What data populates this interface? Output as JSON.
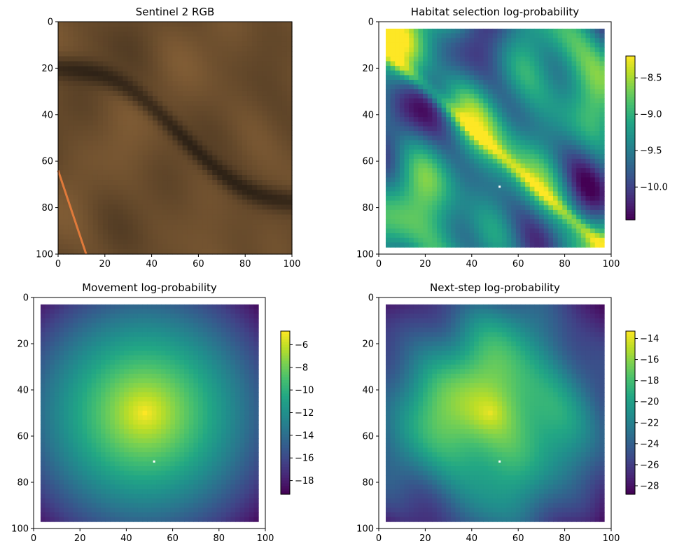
{
  "chart_data": [
    {
      "type": "image",
      "title": "Sentinel 2 RGB",
      "xticks": [
        0,
        20,
        40,
        60,
        80,
        100
      ],
      "yticks": [
        0,
        20,
        40,
        60,
        80,
        100
      ],
      "xlim": [
        0,
        100
      ],
      "ylim": [
        100,
        0
      ],
      "grid": false,
      "colorbar": null
    },
    {
      "type": "heatmap",
      "title": "Habitat selection log-probability",
      "xticks": [
        0,
        20,
        40,
        60,
        80,
        100
      ],
      "yticks": [
        0,
        20,
        40,
        60,
        80,
        100
      ],
      "xlim": [
        0,
        100
      ],
      "ylim": [
        100,
        0
      ],
      "data_extent": [
        3,
        97
      ],
      "colormap": "viridis",
      "grid": false,
      "colorbar": {
        "vmin": -10.45,
        "vmax": -8.2,
        "ticks": [
          -8.5,
          -9.0,
          -9.5,
          -10.0
        ],
        "tick_labels": [
          "−8.5",
          "−9.0",
          "−9.5",
          "−10.0"
        ]
      },
      "marker": {
        "x": 52,
        "y": 71,
        "color": "#ffffff"
      }
    },
    {
      "type": "heatmap",
      "title": "Movement log-probability",
      "xticks": [
        0,
        20,
        40,
        60,
        80,
        100
      ],
      "yticks": [
        0,
        20,
        40,
        60,
        80,
        100
      ],
      "xlim": [
        0,
        100
      ],
      "ylim": [
        100,
        0
      ],
      "data_extent": [
        3,
        97
      ],
      "colormap": "viridis",
      "grid": false,
      "peak": {
        "x": 48,
        "y": 50
      },
      "colorbar": {
        "vmin": -19.2,
        "vmax": -4.8,
        "ticks": [
          -6,
          -8,
          -10,
          -12,
          -14,
          -16,
          -18
        ],
        "tick_labels": [
          "−6",
          "−8",
          "−10",
          "−12",
          "−14",
          "−16",
          "−18"
        ]
      },
      "marker": {
        "x": 52,
        "y": 71,
        "color": "#ffffff"
      }
    },
    {
      "type": "heatmap",
      "title": "Next-step log-probability",
      "xticks": [
        0,
        20,
        40,
        60,
        80,
        100
      ],
      "yticks": [
        0,
        20,
        40,
        60,
        80,
        100
      ],
      "xlim": [
        0,
        100
      ],
      "ylim": [
        100,
        0
      ],
      "data_extent": [
        3,
        97
      ],
      "colormap": "viridis",
      "grid": false,
      "peak": {
        "x": 48,
        "y": 50
      },
      "colorbar": {
        "vmin": -28.8,
        "vmax": -13.3,
        "ticks": [
          -14,
          -16,
          -18,
          -20,
          -22,
          -24,
          -26,
          -28
        ],
        "tick_labels": [
          "−14",
          "−16",
          "−18",
          "−20",
          "−22",
          "−24",
          "−26",
          "−28"
        ]
      },
      "marker": {
        "x": 52,
        "y": 71,
        "color": "#ffffff"
      }
    }
  ]
}
